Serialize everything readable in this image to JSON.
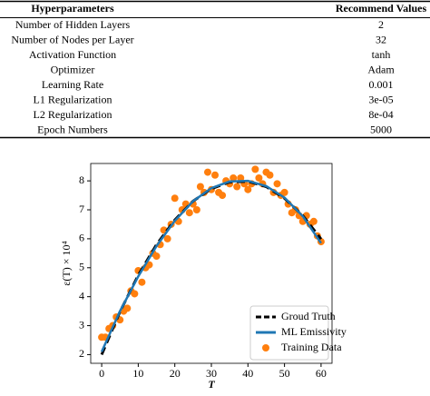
{
  "table": {
    "header": [
      "Hyperparameters",
      "Recommend Values"
    ],
    "rows": [
      [
        "Number of Hidden Layers",
        "2"
      ],
      [
        "Number of Nodes per Layer",
        "32"
      ],
      [
        "Activation Function",
        "tanh"
      ],
      [
        "Optimizer",
        "Adam"
      ],
      [
        "Learning Rate",
        "0.001"
      ],
      [
        "L1 Regularization",
        "3e-05"
      ],
      [
        "L2 Regularization",
        "8e-04"
      ],
      [
        "Epoch Numbers",
        "5000"
      ]
    ]
  },
  "chart_data": {
    "type": "line",
    "xlabel": "T",
    "ylabel": "ε(T) × 10⁴",
    "x": [
      0,
      5,
      10,
      15,
      20,
      25,
      30,
      35,
      40,
      45,
      50,
      55,
      60
    ],
    "xlim": [
      -3,
      63
    ],
    "ylim": [
      1.7,
      8.6
    ],
    "xticks": [
      0,
      10,
      20,
      30,
      40,
      50,
      60
    ],
    "yticks": [
      2,
      3,
      4,
      5,
      6,
      7,
      8
    ],
    "legend": "lower right",
    "series": [
      {
        "name": "Groud Truth",
        "type": "line",
        "style": "dashed",
        "color": "#000000",
        "values": [
          2.0,
          3.48,
          4.74,
          5.8,
          6.65,
          7.3,
          7.73,
          7.96,
          7.98,
          7.8,
          7.4,
          6.8,
          5.99
        ]
      },
      {
        "name": "ML Emissivity",
        "type": "line",
        "style": "solid",
        "color": "#1f77b4",
        "values": [
          2.1,
          3.5,
          4.7,
          5.75,
          6.62,
          7.3,
          7.75,
          7.98,
          8.0,
          7.82,
          7.42,
          6.78,
          5.85
        ]
      },
      {
        "name": "Training Data",
        "type": "scatter",
        "color": "#ff7f0e",
        "x": [
          0,
          1,
          2,
          3,
          4,
          5,
          6,
          7,
          8,
          9,
          10,
          11,
          12,
          13,
          14,
          15,
          16,
          17,
          18,
          19,
          20,
          21,
          22,
          23,
          24,
          25,
          26,
          27,
          28,
          29,
          30,
          31,
          32,
          33,
          34,
          35,
          36,
          37,
          38,
          39,
          40,
          41,
          42,
          43,
          44,
          45,
          46,
          47,
          48,
          49,
          50,
          51,
          52,
          53,
          54,
          55,
          56,
          57,
          58,
          59,
          60
        ],
        "values": [
          2.6,
          2.6,
          2.9,
          3.0,
          3.3,
          3.2,
          3.5,
          3.6,
          4.2,
          4.1,
          4.9,
          4.5,
          5.0,
          5.1,
          5.5,
          5.4,
          5.8,
          6.3,
          6.0,
          6.5,
          7.4,
          6.6,
          7.0,
          7.2,
          6.9,
          7.2,
          7.0,
          7.8,
          7.6,
          8.3,
          7.7,
          8.2,
          7.6,
          7.5,
          8.0,
          7.9,
          8.1,
          7.8,
          8.1,
          7.9,
          7.7,
          7.9,
          8.4,
          8.1,
          7.9,
          8.3,
          8.2,
          7.6,
          7.9,
          7.5,
          7.6,
          7.2,
          6.9,
          7.0,
          6.8,
          6.6,
          6.8,
          6.5,
          6.6,
          6.1,
          5.9
        ]
      }
    ]
  }
}
